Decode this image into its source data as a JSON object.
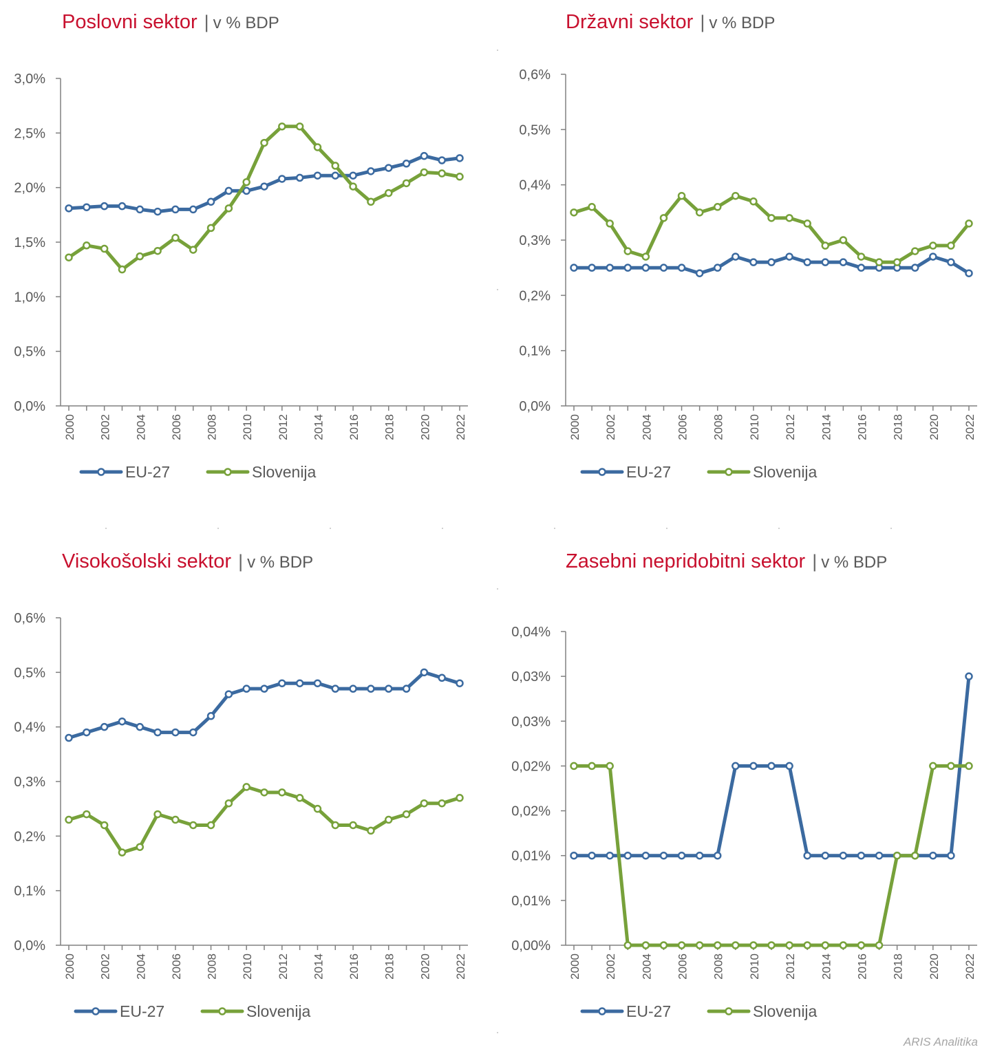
{
  "colors": {
    "eu": "#3b6aa0",
    "si": "#77a13a",
    "title": "#c8102e",
    "axis": "#808080"
  },
  "footer": "ARIS Analitika",
  "chart_data": [
    {
      "type": "line",
      "title": "Poslovni sektor",
      "subtitle": "v % BDP",
      "x": [
        2000,
        2001,
        2002,
        2003,
        2004,
        2005,
        2006,
        2007,
        2008,
        2009,
        2010,
        2011,
        2012,
        2013,
        2014,
        2015,
        2016,
        2017,
        2018,
        2019,
        2020,
        2021,
        2022
      ],
      "x_tick_labels": [
        "2000",
        "2002",
        "2004",
        "2006",
        "2008",
        "2010",
        "2012",
        "2014",
        "2016",
        "2018",
        "2020",
        "2022"
      ],
      "y_tick_labels": [
        "0,0%",
        "0,5%",
        "1,0%",
        "1,5%",
        "2,0%",
        "2,5%",
        "3,0%"
      ],
      "ylim": [
        0,
        3.0
      ],
      "series": [
        {
          "name": "EU-27",
          "values": [
            1.81,
            1.82,
            1.83,
            1.83,
            1.8,
            1.78,
            1.8,
            1.8,
            1.87,
            1.97,
            1.97,
            2.01,
            2.08,
            2.09,
            2.11,
            2.11,
            2.11,
            2.15,
            2.18,
            2.22,
            2.29,
            2.25,
            2.27
          ]
        },
        {
          "name": "Slovenija",
          "values": [
            1.36,
            1.47,
            1.44,
            1.25,
            1.37,
            1.42,
            1.54,
            1.43,
            1.63,
            1.81,
            2.05,
            2.41,
            2.56,
            2.56,
            2.37,
            2.2,
            2.01,
            1.87,
            1.95,
            2.04,
            2.14,
            2.13,
            2.1
          ]
        }
      ],
      "legend": "bottom-left"
    },
    {
      "type": "line",
      "title": "Državni sektor",
      "subtitle": "v % BDP",
      "x": [
        2000,
        2001,
        2002,
        2003,
        2004,
        2005,
        2006,
        2007,
        2008,
        2009,
        2010,
        2011,
        2012,
        2013,
        2014,
        2015,
        2016,
        2017,
        2018,
        2019,
        2020,
        2021,
        2022
      ],
      "x_tick_labels": [
        "2000",
        "2002",
        "2004",
        "2006",
        "2008",
        "2010",
        "2012",
        "2014",
        "2016",
        "2018",
        "2020",
        "2022"
      ],
      "y_tick_labels": [
        "0,0%",
        "0,1%",
        "0,2%",
        "0,3%",
        "0,4%",
        "0,5%",
        "0,6%"
      ],
      "ylim": [
        0,
        0.6
      ],
      "series": [
        {
          "name": "EU-27",
          "values": [
            0.25,
            0.25,
            0.25,
            0.25,
            0.25,
            0.25,
            0.25,
            0.24,
            0.25,
            0.27,
            0.26,
            0.26,
            0.27,
            0.26,
            0.26,
            0.26,
            0.25,
            0.25,
            0.25,
            0.25,
            0.27,
            0.26,
            0.24
          ]
        },
        {
          "name": "Slovenija",
          "values": [
            0.35,
            0.36,
            0.33,
            0.28,
            0.27,
            0.34,
            0.38,
            0.35,
            0.36,
            0.38,
            0.37,
            0.34,
            0.34,
            0.33,
            0.29,
            0.3,
            0.27,
            0.26,
            0.26,
            0.28,
            0.29,
            0.29,
            0.33
          ]
        }
      ],
      "legend": "bottom-left"
    },
    {
      "type": "line",
      "title": "Visokošolski sektor",
      "subtitle": "v % BDP",
      "x": [
        2000,
        2001,
        2002,
        2003,
        2004,
        2005,
        2006,
        2007,
        2008,
        2009,
        2010,
        2011,
        2012,
        2013,
        2014,
        2015,
        2016,
        2017,
        2018,
        2019,
        2020,
        2021,
        2022
      ],
      "x_tick_labels": [
        "2000",
        "2002",
        "2004",
        "2006",
        "2008",
        "2010",
        "2012",
        "2014",
        "2016",
        "2018",
        "2020",
        "2022"
      ],
      "y_tick_labels": [
        "0,0%",
        "0,1%",
        "0,2%",
        "0,3%",
        "0,4%",
        "0,5%",
        "0,6%"
      ],
      "ylim": [
        0,
        0.6
      ],
      "series": [
        {
          "name": "EU-27",
          "values": [
            0.38,
            0.39,
            0.4,
            0.41,
            0.4,
            0.39,
            0.39,
            0.39,
            0.42,
            0.46,
            0.47,
            0.47,
            0.48,
            0.48,
            0.48,
            0.47,
            0.47,
            0.47,
            0.47,
            0.47,
            0.5,
            0.49,
            0.48
          ]
        },
        {
          "name": "Slovenija",
          "values": [
            0.23,
            0.24,
            0.22,
            0.17,
            0.18,
            0.24,
            0.23,
            0.22,
            0.22,
            0.26,
            0.29,
            0.28,
            0.28,
            0.27,
            0.25,
            0.22,
            0.22,
            0.21,
            0.23,
            0.24,
            0.26,
            0.26,
            0.27
          ]
        }
      ],
      "legend": "bottom-left"
    },
    {
      "type": "line",
      "title": "Zasebni nepridobitni sektor",
      "subtitle": "v % BDP",
      "x": [
        2000,
        2001,
        2002,
        2003,
        2004,
        2005,
        2006,
        2007,
        2008,
        2009,
        2010,
        2011,
        2012,
        2013,
        2014,
        2015,
        2016,
        2017,
        2018,
        2019,
        2020,
        2021,
        2022
      ],
      "x_tick_labels": [
        "2000",
        "2002",
        "2004",
        "2006",
        "2008",
        "2010",
        "2012",
        "2014",
        "2016",
        "2018",
        "2020",
        "2022"
      ],
      "y_tick_labels": [
        "0,00%",
        "0,01%",
        "0,01%",
        "0,02%",
        "0,02%",
        "0,03%",
        "0,03%",
        "0,04%"
      ],
      "ylim": [
        0,
        0.035
      ],
      "series": [
        {
          "name": "EU-27",
          "values": [
            0.01,
            0.01,
            0.01,
            0.01,
            0.01,
            0.01,
            0.01,
            0.01,
            0.01,
            0.02,
            0.02,
            0.02,
            0.02,
            0.01,
            0.01,
            0.01,
            0.01,
            0.01,
            0.01,
            0.01,
            0.01,
            0.01,
            0.03
          ]
        },
        {
          "name": "Slovenija",
          "values": [
            0.02,
            0.02,
            0.02,
            0.0,
            0.0,
            0.0,
            0.0,
            0.0,
            0.0,
            0.0,
            0.0,
            0.0,
            0.0,
            0.0,
            0.0,
            0.0,
            0.0,
            0.0,
            0.01,
            0.01,
            0.02,
            0.02,
            0.02
          ]
        }
      ],
      "legend": "bottom-left"
    }
  ]
}
